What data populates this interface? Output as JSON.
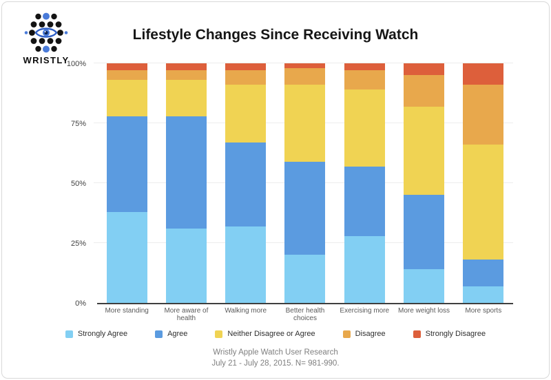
{
  "brand": {
    "name": "WRISTLY"
  },
  "chart_data": {
    "type": "bar",
    "subtype": "stacked-percent",
    "title": "Lifestyle Changes Since Receiving Watch",
    "categories": [
      "More standing",
      "More aware of health",
      "Walking more",
      "Better health choices",
      "Exercising more",
      "More weight loss",
      "More sports"
    ],
    "series": [
      {
        "name": "Strongly Agree",
        "color": "#82CFF3",
        "values": [
          38,
          31,
          32,
          20,
          28,
          14,
          7
        ]
      },
      {
        "name": "Agree",
        "color": "#5B9BE0",
        "values": [
          40,
          47,
          35,
          39,
          29,
          31,
          11
        ]
      },
      {
        "name": "Neither Disagree or Agree",
        "color": "#F0D353",
        "values": [
          15,
          15,
          24,
          32,
          32,
          37,
          48
        ]
      },
      {
        "name": "Disagree",
        "color": "#E8A84C",
        "values": [
          4,
          4,
          6,
          7,
          8,
          13,
          25
        ]
      },
      {
        "name": "Strongly Disagree",
        "color": "#DD5F3B",
        "values": [
          3,
          3,
          3,
          2,
          3,
          5,
          9
        ]
      }
    ],
    "y_ticks": [
      "0%",
      "25%",
      "50%",
      "75%",
      "100%"
    ],
    "ylim": [
      0,
      100
    ],
    "grid": true,
    "legend_position": "bottom"
  },
  "footer": {
    "line1": "Wristly Apple Watch User Research",
    "line2": "July 21 - July 28, 2015.  N= 981-990."
  }
}
